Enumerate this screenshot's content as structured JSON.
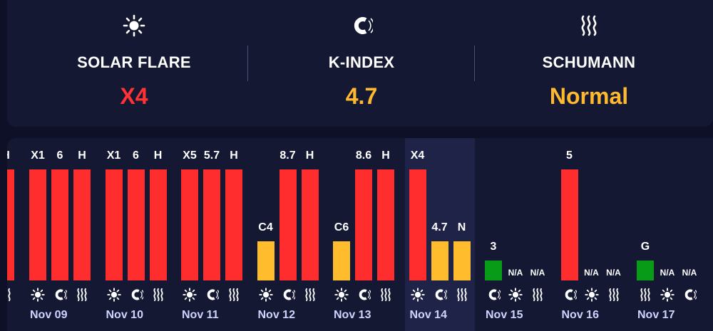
{
  "summary": {
    "solar_flare": {
      "label": "SOLAR FLARE",
      "value": "X4",
      "color": "#ff3333",
      "icon": "sun-icon"
    },
    "k_index": {
      "label": "K-INDEX",
      "value": "4.7",
      "color": "#ffb92e",
      "icon": "magnet-icon"
    },
    "schumann": {
      "label": "SCHUMANN",
      "value": "Normal",
      "color": "#ffb92e",
      "icon": "waves-icon"
    }
  },
  "colors": {
    "red": "#ff2d2d",
    "yellow": "#ffbd2e",
    "green": "#079b18",
    "date": "#cfd4ff"
  },
  "chart_data": {
    "type": "bar",
    "title": "",
    "categories": [
      "Nov 09",
      "Nov 10",
      "Nov 11",
      "Nov 12",
      "Nov 13",
      "Nov 14",
      "Nov 15",
      "Nov 16",
      "Nov 17"
    ],
    "series": [
      {
        "name": "Solar Flare",
        "icon": "sun-icon",
        "labels": [
          "X1",
          "X1",
          "X5",
          "C4",
          "C6",
          "X4",
          "",
          "",
          ""
        ],
        "levels": [
          1,
          1,
          1,
          0.35,
          0.35,
          1,
          null,
          null,
          null
        ],
        "colors": [
          "red",
          "red",
          "red",
          "yellow",
          "yellow",
          "red",
          "",
          "",
          ""
        ]
      },
      {
        "name": "K-Index",
        "icon": "magnet-icon",
        "labels": [
          "6",
          "6",
          "5.7",
          "8.7",
          "8.6",
          "4.7",
          "3",
          "5",
          "N/A"
        ],
        "levels": [
          1,
          1,
          1,
          1,
          1,
          0.35,
          0.18,
          1,
          null
        ],
        "colors": [
          "red",
          "red",
          "red",
          "red",
          "red",
          "yellow",
          "green",
          "red",
          ""
        ]
      },
      {
        "name": "Schumann",
        "icon": "waves-icon",
        "labels": [
          "H",
          "H",
          "H",
          "H",
          "H",
          "N",
          "N/A",
          "N/A",
          "G"
        ],
        "levels": [
          1,
          1,
          1,
          1,
          1,
          0.35,
          null,
          null,
          0.18
        ],
        "colors": [
          "red",
          "red",
          "red",
          "red",
          "red",
          "yellow",
          "",
          "",
          "green"
        ]
      }
    ],
    "icon_order": [
      [
        "sun-icon",
        "magnet-icon",
        "waves-icon"
      ],
      [
        "sun-icon",
        "magnet-icon",
        "waves-icon"
      ],
      [
        "sun-icon",
        "magnet-icon",
        "waves-icon"
      ],
      [
        "sun-icon",
        "magnet-icon",
        "waves-icon"
      ],
      [
        "sun-icon",
        "magnet-icon",
        "waves-icon"
      ],
      [
        "sun-icon",
        "magnet-icon",
        "waves-icon"
      ],
      [
        "magnet-icon",
        "sun-icon",
        "waves-icon"
      ],
      [
        "magnet-icon",
        "sun-icon",
        "waves-icon"
      ],
      [
        "waves-icon",
        "sun-icon",
        "magnet-icon"
      ]
    ],
    "slot_labels": [
      [
        "X1",
        "6",
        "H"
      ],
      [
        "X1",
        "6",
        "H"
      ],
      [
        "X5",
        "5.7",
        "H"
      ],
      [
        "C4",
        "8.7",
        "H"
      ],
      [
        "C6",
        "8.6",
        "H"
      ],
      [
        "X4",
        "4.7",
        "N"
      ],
      [
        "3",
        "N/A",
        "N/A"
      ],
      [
        "5",
        "N/A",
        "N/A"
      ],
      [
        "G",
        "N/A",
        "N/A"
      ]
    ],
    "slot_levels": [
      [
        1,
        1,
        1
      ],
      [
        1,
        1,
        1
      ],
      [
        1,
        1,
        1
      ],
      [
        0.35,
        1,
        1
      ],
      [
        0.35,
        1,
        1
      ],
      [
        1,
        0.35,
        0.35
      ],
      [
        0.18,
        null,
        null
      ],
      [
        1,
        null,
        null
      ],
      [
        0.18,
        null,
        null
      ]
    ],
    "slot_colors": [
      [
        "red",
        "red",
        "red"
      ],
      [
        "red",
        "red",
        "red"
      ],
      [
        "red",
        "red",
        "red"
      ],
      [
        "yellow",
        "red",
        "red"
      ],
      [
        "yellow",
        "red",
        "red"
      ],
      [
        "red",
        "yellow",
        "yellow"
      ],
      [
        "green",
        "",
        ""
      ],
      [
        "red",
        "",
        ""
      ],
      [
        "green",
        "",
        ""
      ]
    ],
    "today": "Nov 14",
    "partial_left": {
      "label": "H",
      "level": 1,
      "color": "red",
      "icon": "waves-icon"
    }
  }
}
